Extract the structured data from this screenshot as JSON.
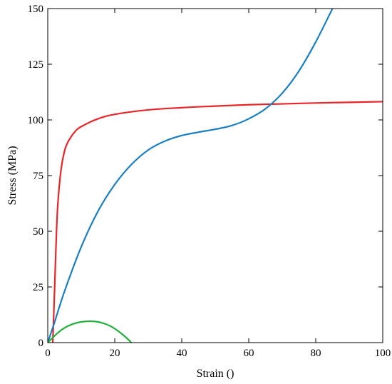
{
  "chart_data": {
    "type": "line",
    "title": "",
    "xlabel": "Strain ()",
    "ylabel": "Stress (MPa)",
    "xlim": [
      0,
      100
    ],
    "ylim": [
      0,
      150
    ],
    "xticks": [
      0,
      20,
      40,
      60,
      80,
      100
    ],
    "yticks": [
      0,
      25,
      50,
      75,
      100,
      125,
      150
    ],
    "grid": false,
    "legend": "none",
    "series": [
      {
        "color": "#e8262a",
        "x": [
          1.5,
          2,
          2.5,
          3,
          4,
          5,
          6,
          8,
          10,
          15,
          20,
          30,
          40,
          50,
          60,
          70,
          80,
          90,
          100
        ],
        "y": [
          0,
          22,
          45,
          62,
          78,
          86,
          90,
          94.5,
          97,
          100.5,
          102.5,
          104.5,
          105.5,
          106.2,
          106.8,
          107.2,
          107.6,
          107.9,
          108.2
        ]
      },
      {
        "color": "#1a7fc1",
        "x": [
          0,
          2,
          5,
          10,
          15,
          20,
          25,
          30,
          35,
          40,
          45,
          50,
          55,
          60,
          65,
          70,
          75,
          80,
          85
        ],
        "y": [
          0,
          9,
          23,
          43,
          59,
          71,
          80,
          86.5,
          90.5,
          93,
          94.5,
          95.8,
          97.5,
          100.5,
          105,
          112,
          122,
          135,
          150
        ]
      },
      {
        "color": "#22b03c",
        "x": [
          0,
          2,
          4,
          6,
          8,
          10,
          12.5,
          15,
          17,
          19,
          21,
          23,
          25
        ],
        "y": [
          0,
          3,
          5.6,
          7.4,
          8.6,
          9.3,
          9.6,
          9.3,
          8.5,
          7.2,
          5.2,
          2.8,
          0
        ]
      }
    ]
  }
}
